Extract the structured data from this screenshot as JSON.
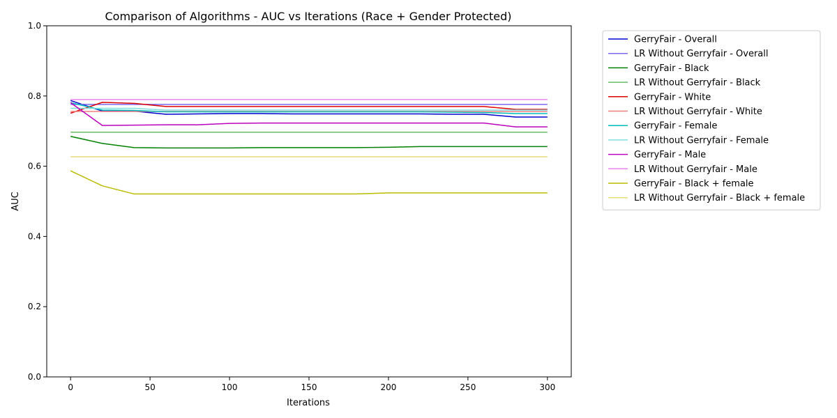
{
  "chart_data": {
    "type": "line",
    "title": "Comparison of Algorithms - AUC vs Iterations (Race + Gender Protected)",
    "xlabel": "Iterations",
    "ylabel": "AUC",
    "xlim": [
      -15,
      315
    ],
    "ylim": [
      0,
      1
    ],
    "xticks": [
      0,
      50,
      100,
      150,
      200,
      250,
      300
    ],
    "yticks": [
      0.0,
      0.2,
      0.4,
      0.6,
      0.8,
      1.0
    ],
    "grid": false,
    "legend_position": "outside-right",
    "x": [
      0,
      20,
      40,
      60,
      80,
      100,
      120,
      140,
      160,
      180,
      200,
      220,
      240,
      260,
      280,
      300
    ],
    "series": [
      {
        "name": "GerryFair - Overall",
        "color": "#0000cc",
        "width": 1.5,
        "values": [
          0.787,
          0.757,
          0.757,
          0.748,
          0.749,
          0.75,
          0.75,
          0.749,
          0.749,
          0.749,
          0.749,
          0.749,
          0.748,
          0.748,
          0.74,
          0.74
        ]
      },
      {
        "name": "LR Without Gerryfair - Overall",
        "color": "#7b68ee",
        "width": 1.5,
        "values": [
          0.776,
          0.776,
          0.776,
          0.776,
          0.776,
          0.776,
          0.776,
          0.776,
          0.776,
          0.776,
          0.776,
          0.776,
          0.776,
          0.776,
          0.776,
          0.776
        ]
      },
      {
        "name": "GerryFair - Black",
        "color": "#008000",
        "width": 1.5,
        "values": [
          0.685,
          0.665,
          0.653,
          0.652,
          0.652,
          0.652,
          0.653,
          0.653,
          0.653,
          0.653,
          0.654,
          0.656,
          0.656,
          0.656,
          0.656,
          0.656
        ]
      },
      {
        "name": "LR Without Gerryfair - Black",
        "color": "#66bb66",
        "width": 1.5,
        "values": [
          0.697,
          0.697,
          0.697,
          0.697,
          0.697,
          0.697,
          0.697,
          0.697,
          0.697,
          0.697,
          0.697,
          0.697,
          0.697,
          0.697,
          0.697,
          0.697
        ]
      },
      {
        "name": "GerryFair - White",
        "color": "#dd0000",
        "width": 1.5,
        "values": [
          0.751,
          0.782,
          0.779,
          0.77,
          0.77,
          0.77,
          0.77,
          0.77,
          0.77,
          0.77,
          0.77,
          0.77,
          0.77,
          0.77,
          0.762,
          0.762
        ]
      },
      {
        "name": "LR Without Gerryfair - White",
        "color": "#f08080",
        "width": 1.5,
        "values": [
          0.756,
          0.756,
          0.756,
          0.756,
          0.756,
          0.756,
          0.756,
          0.756,
          0.756,
          0.756,
          0.756,
          0.756,
          0.756,
          0.756,
          0.756,
          0.756
        ]
      },
      {
        "name": "GerryFair - Female",
        "color": "#00bbbb",
        "width": 1.5,
        "values": [
          0.781,
          0.76,
          0.759,
          0.755,
          0.755,
          0.755,
          0.755,
          0.755,
          0.755,
          0.755,
          0.755,
          0.755,
          0.754,
          0.753,
          0.75,
          0.75
        ]
      },
      {
        "name": "LR Without Gerryfair - Female",
        "color": "#7fdfdf",
        "width": 1.5,
        "values": [
          0.765,
          0.765,
          0.765,
          0.76,
          0.76,
          0.76,
          0.76,
          0.76,
          0.76,
          0.76,
          0.76,
          0.76,
          0.76,
          0.76,
          0.76,
          0.76
        ]
      },
      {
        "name": "GerryFair - Male",
        "color": "#bb00bb",
        "width": 1.5,
        "values": [
          0.781,
          0.716,
          0.717,
          0.718,
          0.718,
          0.722,
          0.723,
          0.723,
          0.723,
          0.723,
          0.723,
          0.723,
          0.723,
          0.723,
          0.712,
          0.712
        ]
      },
      {
        "name": "LR Without Gerryfair - Male",
        "color": "#ee82ee",
        "width": 1.5,
        "values": [
          0.79,
          0.79,
          0.79,
          0.79,
          0.79,
          0.79,
          0.79,
          0.79,
          0.79,
          0.79,
          0.79,
          0.79,
          0.79,
          0.79,
          0.79,
          0.79
        ]
      },
      {
        "name": "GerryFair - Black + female",
        "color": "#bbbb00",
        "width": 1.5,
        "values": [
          0.587,
          0.544,
          0.521,
          0.521,
          0.521,
          0.521,
          0.521,
          0.521,
          0.521,
          0.521,
          0.524,
          0.524,
          0.524,
          0.524,
          0.524,
          0.524
        ]
      },
      {
        "name": "LR Without Gerryfair - Black + female",
        "color": "#e6dc7a",
        "width": 1.5,
        "values": [
          0.627,
          0.627,
          0.627,
          0.627,
          0.627,
          0.627,
          0.627,
          0.627,
          0.627,
          0.627,
          0.627,
          0.627,
          0.627,
          0.627,
          0.627,
          0.627
        ]
      }
    ]
  }
}
